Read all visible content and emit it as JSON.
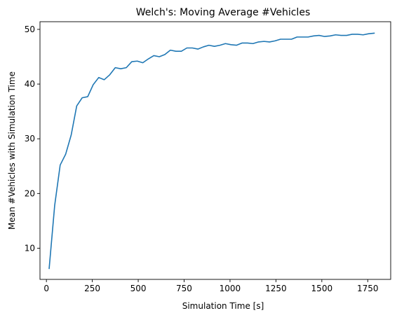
{
  "chart_data": {
    "type": "line",
    "title": "Welch's: Moving Average #Vehicles",
    "xlabel": "Simulation Time [s]",
    "ylabel": "Mean #Vehicles with Simulation Time",
    "xlim": [
      -35,
      1875
    ],
    "ylim": [
      4.3,
      51.4
    ],
    "xticks": [
      0,
      250,
      500,
      750,
      1000,
      1250,
      1500,
      1750
    ],
    "xtick_labels": [
      "0",
      "250",
      "500",
      "750",
      "1000",
      "1250",
      "1500",
      "1750"
    ],
    "yticks": [
      10,
      20,
      30,
      40,
      50
    ],
    "ytick_labels": [
      "10",
      "20",
      "30",
      "40",
      "50"
    ],
    "grid": false,
    "line_color": "#1f77b4",
    "series": [
      {
        "x": [
          15,
          45,
          75,
          105,
          135,
          165,
          195,
          225,
          255,
          285,
          315,
          345,
          375,
          405,
          435,
          465,
          495,
          525,
          555,
          585,
          615,
          645,
          675,
          705,
          735,
          765,
          795,
          825,
          855,
          885,
          915,
          945,
          975,
          1005,
          1035,
          1065,
          1095,
          1125,
          1155,
          1185,
          1215,
          1245,
          1275,
          1305,
          1335,
          1365,
          1395,
          1425,
          1455,
          1485,
          1515,
          1545,
          1575,
          1605,
          1635,
          1665,
          1695,
          1725,
          1755,
          1785
        ],
        "y": [
          6.3,
          17.8,
          25.2,
          27.2,
          30.7,
          36.0,
          37.5,
          37.7,
          39.9,
          41.2,
          40.8,
          41.7,
          43.0,
          42.8,
          43.0,
          44.1,
          44.2,
          43.9,
          44.6,
          45.2,
          45.0,
          45.4,
          46.2,
          46.0,
          46.0,
          46.6,
          46.6,
          46.4,
          46.8,
          47.1,
          46.9,
          47.1,
          47.4,
          47.2,
          47.1,
          47.5,
          47.5,
          47.4,
          47.7,
          47.8,
          47.7,
          47.9,
          48.2,
          48.2,
          48.2,
          48.6,
          48.6,
          48.6,
          48.8,
          48.9,
          48.7,
          48.8,
          49.0,
          48.9,
          48.9,
          49.1,
          49.1,
          49.0,
          49.2,
          49.3
        ]
      }
    ]
  }
}
